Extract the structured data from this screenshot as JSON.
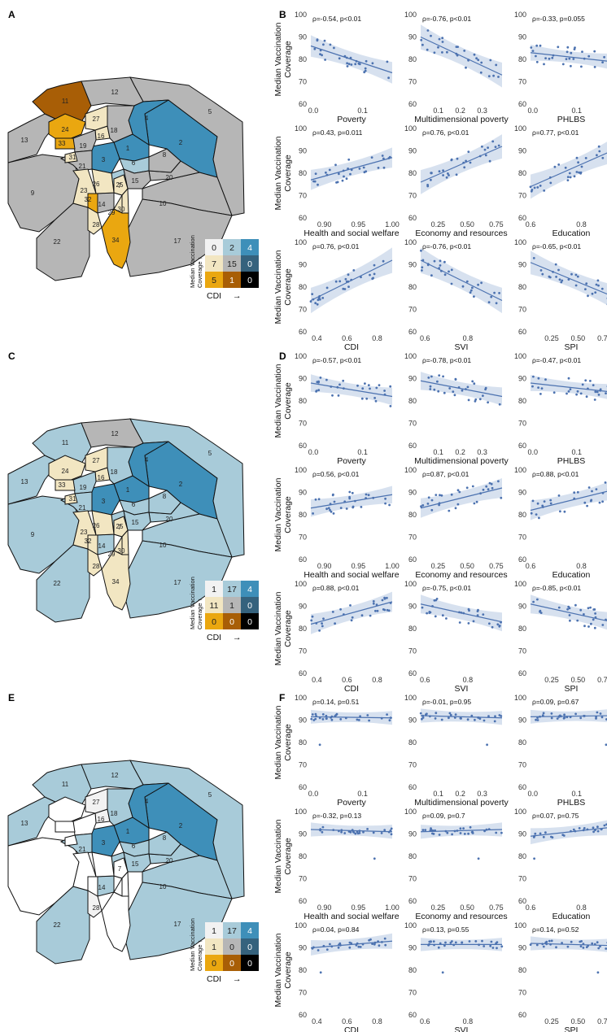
{
  "panel_labels": [
    "A",
    "B",
    "C",
    "D",
    "E",
    "F"
  ],
  "legend": {
    "xlabel": "CDI",
    "ylabel_line1": "Median Vaccination",
    "ylabel_line2": "Coverage",
    "arrow": "→",
    "counts_A": [
      [
        0,
        2,
        4
      ],
      [
        7,
        15,
        0
      ],
      [
        5,
        1,
        0
      ]
    ],
    "counts_C": [
      [
        1,
        17,
        4
      ],
      [
        11,
        1,
        0
      ],
      [
        0,
        0,
        0
      ]
    ],
    "counts_E": [
      [
        1,
        17,
        4
      ],
      [
        1,
        0,
        0
      ],
      [
        0,
        0,
        0
      ]
    ],
    "colors": [
      [
        "#f2f2f2",
        "#a8cbd9",
        "#3e8fb9"
      ],
      [
        "#f2e6c2",
        "#b6b6b6",
        "#35627d"
      ],
      [
        "#eaa710",
        "#a85e06",
        "#000000"
      ]
    ]
  },
  "maps": {
    "region_labels": [
      "1",
      "2",
      "3",
      "4",
      "5",
      "6",
      "7",
      "8",
      "9",
      "10",
      "11",
      "12",
      "13",
      "14",
      "15",
      "16",
      "17",
      "18",
      "19",
      "20",
      "21",
      "22",
      "23",
      "24",
      "25",
      "26",
      "27",
      "28",
      "29",
      "30",
      "31",
      "32",
      "33",
      "34"
    ],
    "category_colors": {
      "light_gray": "#f2f2f2",
      "light_blue": "#a8cbd9",
      "dark_blue": "#3e8fb9",
      "cream": "#f2e6c2",
      "gray": "#b6b6b6",
      "amber": "#eaa710",
      "brown": "#a85e06",
      "none": "#ffffff"
    }
  },
  "chart_data": {
    "type": "scatter",
    "ylabel": "Median Vaccination Coverage",
    "xlabels": [
      "Poverty",
      "Multidimensional poverty",
      "PHLBS",
      "Health and social welfare",
      "Economy and resources",
      "Education",
      "CDI",
      "SVI",
      "SPI"
    ],
    "x_ticks": [
      [
        "0.0",
        "0.1"
      ],
      [
        "0.1",
        "0.2",
        "0.3"
      ],
      [
        "0.0",
        "0.1"
      ],
      [
        "0.90",
        "0.95",
        "1.00"
      ],
      [
        "0.25",
        "0.50",
        "0.75"
      ],
      [
        "0.6",
        "0.8"
      ],
      [
        "0.4",
        "0.6",
        "0.8"
      ],
      [
        "0.6",
        "0.8"
      ],
      [
        "0.25",
        "0.50",
        "0.75"
      ]
    ],
    "y_ticks": [
      "60",
      "70",
      "80",
      "90",
      "100"
    ],
    "ylim": [
      60,
      100
    ],
    "point_color": "#4c72b0",
    "band_color": "#c6d4e8",
    "panels": [
      {
        "label": "B",
        "stats": [
          "ρ=-0.54, p<0.01",
          "ρ=-0.76, p<0.01",
          "ρ=-0.33, p=0.055",
          "ρ=0.43, p=0.011",
          "ρ=0.76, p<0.01",
          "ρ=0.77, p<0.01",
          "ρ=0.76, p<0.01",
          "ρ=-0.76, p<0.01",
          "ρ=-0.65, p<0.01"
        ],
        "trend_y": [
          [
            86,
            74
          ],
          [
            90,
            73
          ],
          [
            83,
            79
          ],
          [
            77,
            87
          ],
          [
            76,
            92
          ],
          [
            74,
            90
          ],
          [
            74,
            92
          ],
          [
            92,
            74
          ],
          [
            91,
            76
          ]
        ]
      },
      {
        "label": "D",
        "stats": [
          "ρ=-0.57, p<0.01",
          "ρ=-0.78, p<0.01",
          "ρ=-0.47, p<0.01",
          "ρ=0.56, p<0.01",
          "ρ=0.87, p<0.01",
          "ρ=0.88, p<0.01",
          "ρ=0.88, p<0.01",
          "ρ=-0.75, p<0.01",
          "ρ=-0.85, p<0.01"
        ],
        "trend_y": [
          [
            88,
            82
          ],
          [
            89,
            82
          ],
          [
            88,
            84
          ],
          [
            83,
            89
          ],
          [
            83,
            92
          ],
          [
            82,
            91
          ],
          [
            82,
            92
          ],
          [
            91,
            83
          ],
          [
            91,
            83
          ]
        ]
      },
      {
        "label": "F",
        "stats": [
          "ρ=0.14, p=0.51",
          "ρ=-0.01, p=0.95",
          "ρ=0.09, p=0.67",
          "ρ=-0.32, p=0.13",
          "ρ=0.09, p=0.7",
          "ρ=0.07, p=0.75",
          "ρ=0.04, p=0.84",
          "ρ=0.13, p=0.55",
          "ρ=0.14, p=0.52"
        ],
        "trend_y": [
          [
            91.5,
            91
          ],
          [
            92,
            91
          ],
          [
            91.5,
            92
          ],
          [
            92,
            91
          ],
          [
            91,
            92
          ],
          [
            89,
            93
          ],
          [
            90,
            93
          ],
          [
            91.5,
            91.5
          ],
          [
            92,
            91
          ]
        ]
      }
    ]
  }
}
